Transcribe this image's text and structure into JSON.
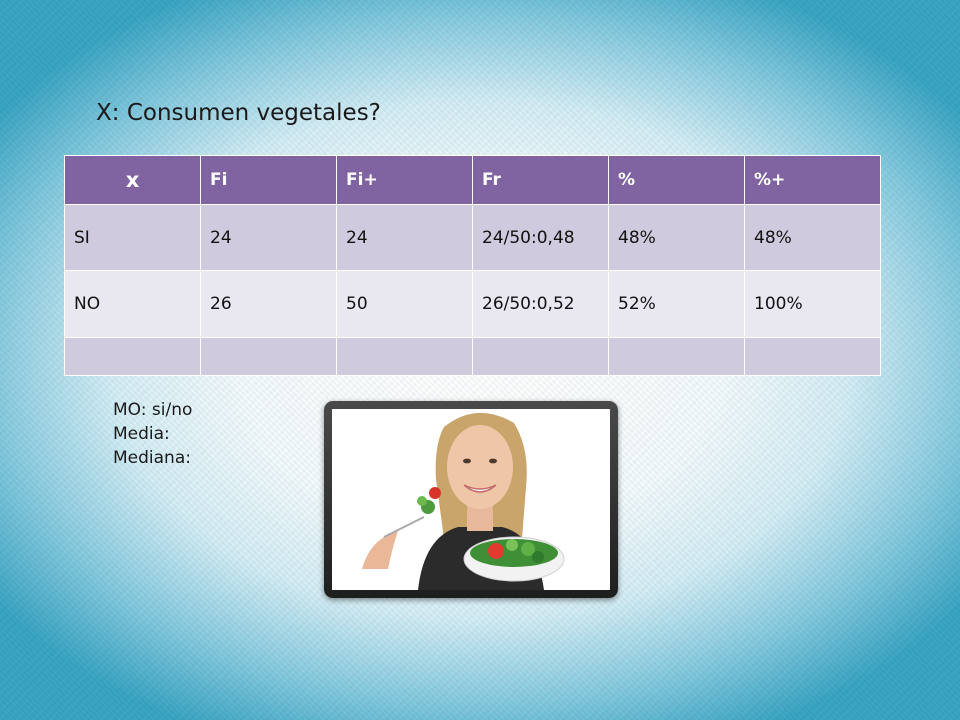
{
  "slide": {
    "title": "X: Consumen vegetales?"
  },
  "table": {
    "headers": [
      "x",
      "Fi",
      "Fi+",
      "Fr",
      "%",
      "%+"
    ],
    "rows": [
      [
        "SI",
        "24",
        "24",
        "24/50:0,48",
        "48%",
        "48%"
      ],
      [
        "NO",
        "26",
        "50",
        "26/50:0,52",
        "52%",
        "100%"
      ],
      [
        "",
        "",
        "",
        "",
        "",
        ""
      ]
    ]
  },
  "notes": {
    "mode": "MO:  si/no",
    "mean": "Media:",
    "median": "Mediana:"
  },
  "colors": {
    "header_bg": "#8064a2",
    "row_dark": "#cfcadd",
    "row_light": "#e9e7f0",
    "background_edge": "#3aa6c4"
  }
}
